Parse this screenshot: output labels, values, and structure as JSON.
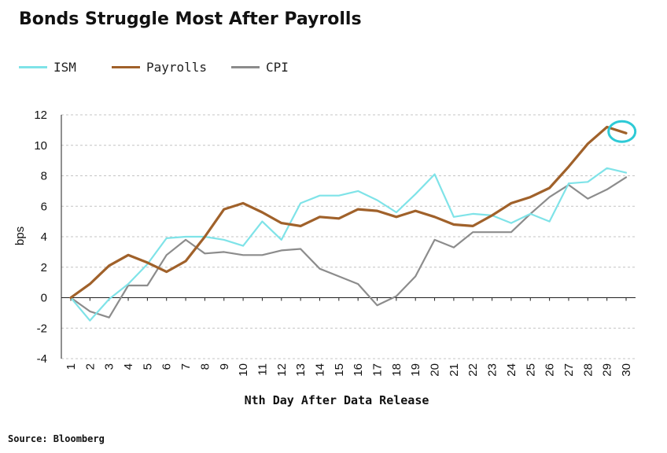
{
  "chart_data": {
    "type": "line",
    "title": "Bonds Struggle Most After Payrolls",
    "xlabel": "Nth Day After Data Release",
    "ylabel": "bps",
    "ylim": [
      -4,
      12
    ],
    "yticks": [
      -4,
      -2,
      0,
      2,
      4,
      6,
      8,
      10,
      12
    ],
    "x": [
      1,
      2,
      3,
      4,
      5,
      6,
      7,
      8,
      9,
      10,
      11,
      12,
      13,
      14,
      15,
      16,
      17,
      18,
      19,
      20,
      21,
      22,
      23,
      24,
      25,
      26,
      27,
      28,
      29,
      30
    ],
    "x_tick_labels": [
      "1",
      "2",
      "3",
      "4",
      "5",
      "6",
      "7",
      "8",
      "9",
      "10",
      "11",
      "12",
      "13",
      "14",
      "15",
      "16",
      "17",
      "18",
      "19",
      "20",
      "21",
      "22",
      "23",
      "24",
      "25",
      "26",
      "27",
      "28",
      "29",
      "30"
    ],
    "grid": "horizontal dashed",
    "legend_position": "top-left",
    "series": [
      {
        "name": "ISM",
        "color": "#7fe3e8",
        "values": [
          0,
          -1.5,
          -0.1,
          0.9,
          2.2,
          3.9,
          4.0,
          4.0,
          3.8,
          3.4,
          5.0,
          3.8,
          6.2,
          6.7,
          6.7,
          7.0,
          6.4,
          5.6,
          6.8,
          8.1,
          5.3,
          5.5,
          5.4,
          4.9,
          5.5,
          5.0,
          7.5,
          7.6,
          8.5,
          8.2
        ]
      },
      {
        "name": "Payrolls",
        "color": "#a0612a",
        "values": [
          0,
          0.9,
          2.1,
          2.8,
          2.3,
          1.7,
          2.4,
          4.0,
          5.8,
          6.2,
          5.6,
          4.9,
          4.7,
          5.3,
          5.2,
          5.8,
          5.7,
          5.3,
          5.7,
          5.3,
          4.8,
          4.7,
          5.4,
          6.2,
          6.6,
          7.2,
          8.6,
          10.1,
          11.2,
          10.8
        ]
      },
      {
        "name": "CPI",
        "color": "#8c8c8c",
        "values": [
          0,
          -0.9,
          -1.3,
          0.8,
          0.8,
          2.8,
          3.8,
          2.9,
          3.0,
          2.8,
          2.8,
          3.1,
          3.2,
          1.9,
          1.4,
          0.9,
          -0.5,
          0.1,
          1.4,
          3.8,
          3.3,
          4.3,
          4.3,
          4.3,
          5.5,
          6.6,
          7.4,
          6.5,
          7.1,
          7.9
        ]
      }
    ],
    "annotation": {
      "type": "circle",
      "x": 29.7,
      "y": 10.8,
      "color": "#2ecad6"
    }
  },
  "source": "Source: Bloomberg"
}
